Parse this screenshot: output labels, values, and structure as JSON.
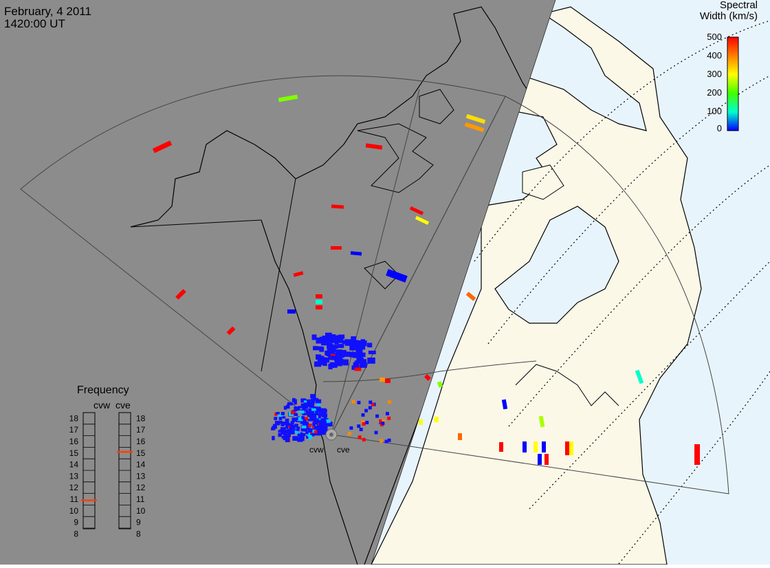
{
  "header": {
    "date": "February, 4 2011",
    "time": "1420:00 UT"
  },
  "colorbar": {
    "title_line1": "Spectral",
    "title_line2": "Width (km/s)",
    "ticks": [
      "500",
      "400",
      "300",
      "200",
      "100",
      "0"
    ]
  },
  "frequency_panel": {
    "title": "Frequency",
    "left_label": "cvw",
    "right_label": "cve",
    "levels": [
      "18",
      "17",
      "16",
      "15",
      "14",
      "13",
      "12",
      "11",
      "10",
      "9",
      "8"
    ],
    "cvw_value": 10.9,
    "cve_value": 15.1
  },
  "stations": [
    {
      "code": "cvw"
    },
    {
      "code": "cve"
    }
  ],
  "colors": {
    "night_shade": "#8c8c8c",
    "land_day": "#fbf8e8",
    "ocean_day": "#e8f4fc",
    "scale_low": "#0000ff",
    "scale_high": "#ff0000"
  }
}
